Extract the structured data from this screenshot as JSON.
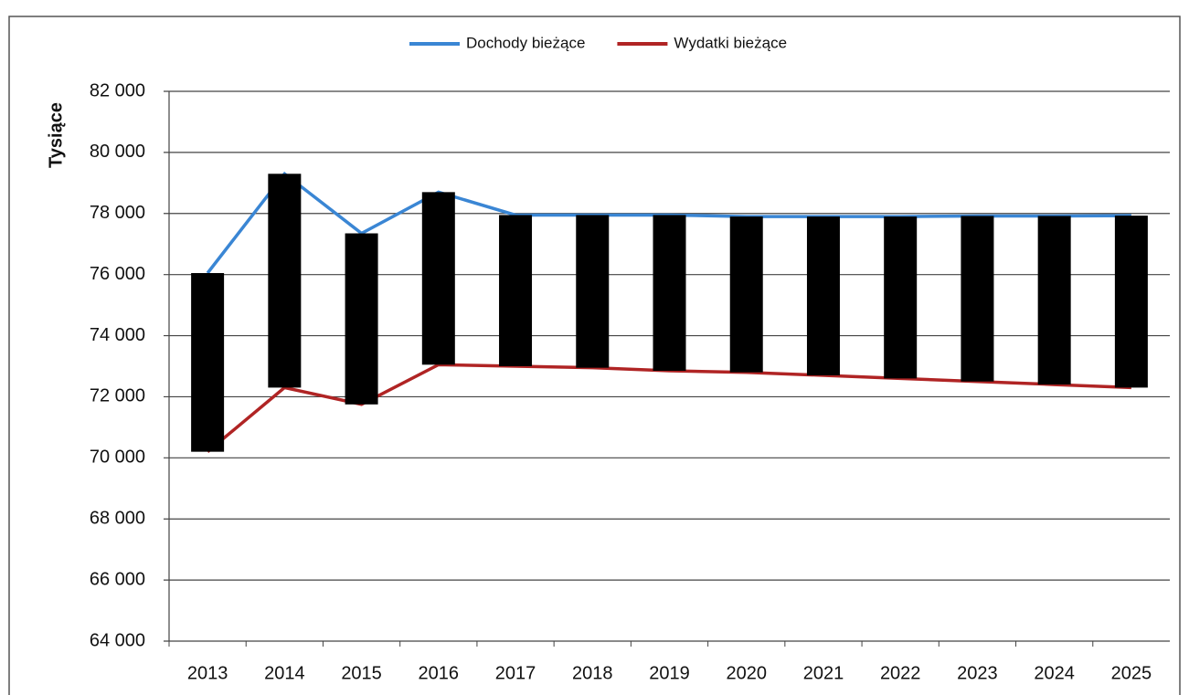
{
  "chart_data": {
    "type": "line",
    "ylabel": "Tysiące",
    "categories": [
      "2013",
      "2014",
      "2015",
      "2016",
      "2017",
      "2018",
      "2019",
      "2020",
      "2021",
      "2022",
      "2023",
      "2024",
      "2025"
    ],
    "series": [
      {
        "name": "Dochody bieżące",
        "color": "#3a86d4",
        "values": [
          76050,
          79300,
          77350,
          78700,
          77950,
          77950,
          77950,
          77900,
          77900,
          77900,
          77920,
          77920,
          77930
        ]
      },
      {
        "name": "Wydatki bieżące",
        "color": "#b02424",
        "values": [
          70200,
          72300,
          71750,
          73050,
          73000,
          72950,
          72850,
          72800,
          72700,
          72600,
          72500,
          72400,
          72300
        ]
      }
    ],
    "up_down_bars_color": "#000000",
    "ylim": [
      64000,
      82000
    ],
    "yticks": [
      {
        "value": 64000,
        "label": "64 000"
      },
      {
        "value": 66000,
        "label": "66 000"
      },
      {
        "value": 68000,
        "label": "68 000"
      },
      {
        "value": 70000,
        "label": "70 000"
      },
      {
        "value": 72000,
        "label": "72 000"
      },
      {
        "value": 74000,
        "label": "74 000"
      },
      {
        "value": 76000,
        "label": "76 000"
      },
      {
        "value": 78000,
        "label": "78 000"
      },
      {
        "value": 80000,
        "label": "80 000"
      },
      {
        "value": 82000,
        "label": "82 000"
      }
    ],
    "grid": true,
    "legend": "top"
  }
}
